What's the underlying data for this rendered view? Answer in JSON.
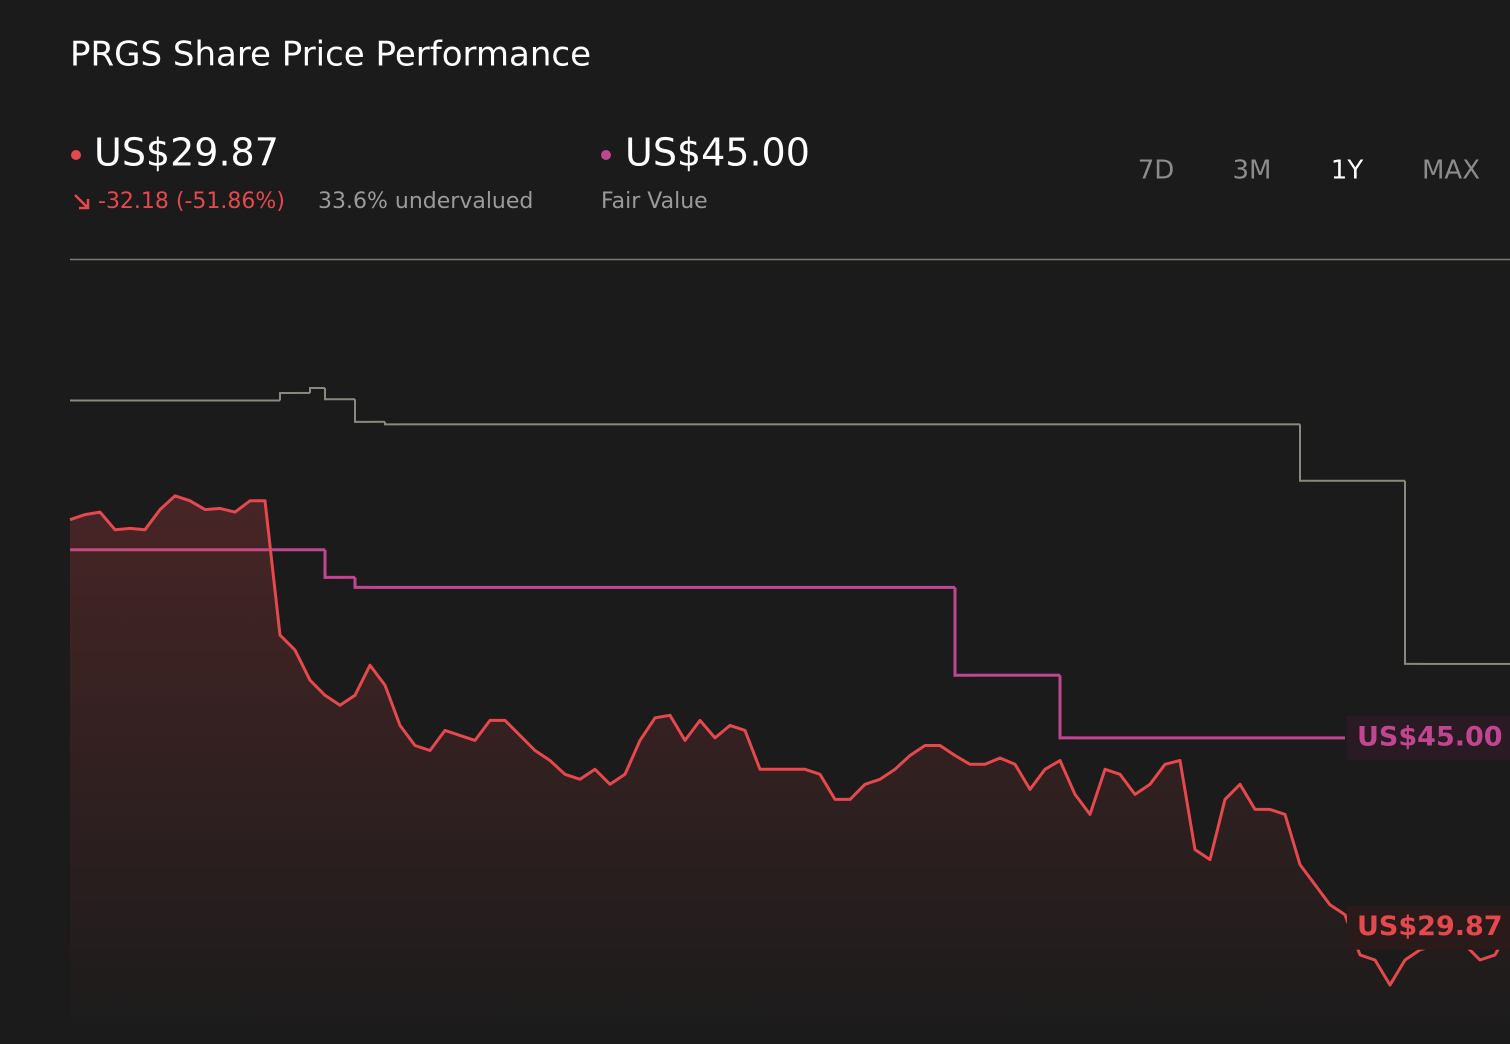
{
  "header": {
    "title": "PRGS Share Price Performance",
    "current_price": "US$29.87",
    "change": "-32.18 (-51.86%)",
    "valuation": "33.6% undervalued",
    "fair_value": "US$45.00"
  },
  "controls": {
    "ranges": [
      "7D",
      "3M",
      "1Y",
      "MAX"
    ],
    "active_range": "1Y"
  },
  "chart_data": {
    "type": "line",
    "ylim": [
      20.6,
      83.1
    ],
    "series": [
      {
        "color": "#e5484d",
        "style": "line",
        "area": true,
        "values": [
          62.4,
          62.8,
          63.0,
          61.6,
          61.7,
          61.6,
          63.2,
          64.3,
          63.9,
          63.2,
          63.3,
          63.0,
          63.9,
          63.9,
          53.2,
          52.0,
          49.6,
          48.4,
          47.6,
          48.4,
          50.8,
          49.2,
          46.0,
          44.4,
          44.0,
          45.6,
          45.2,
          44.8,
          46.4,
          46.4,
          45.2,
          44.0,
          43.2,
          42.1,
          41.7,
          42.5,
          41.3,
          42.1,
          44.8,
          46.6,
          46.8,
          44.8,
          46.4,
          45.0,
          46.0,
          45.6,
          42.5,
          42.5,
          42.5,
          42.5,
          42.1,
          40.1,
          40.1,
          41.3,
          41.7,
          42.5,
          43.6,
          44.4,
          44.4,
          43.6,
          42.9,
          42.9,
          43.4,
          42.9,
          40.9,
          42.5,
          43.2,
          40.5,
          38.9,
          42.5,
          42.1,
          40.5,
          41.3,
          42.9,
          43.2,
          36.1,
          35.3,
          40.1,
          41.3,
          39.3,
          39.3,
          38.9,
          34.9,
          33.3,
          31.7,
          30.9,
          27.7,
          27.3,
          25.3,
          27.3,
          28.1,
          28.5,
          29.7,
          28.5,
          27.3,
          27.7,
          29.87
        ]
      },
      {
        "name": "Fair Value",
        "color": "#c0478f",
        "style": "step",
        "values": [
          60.0,
          60.0,
          60.0,
          60.0,
          60.0,
          60.0,
          60.0,
          60.0,
          60.0,
          60.0,
          60.0,
          60.0,
          60.0,
          60.0,
          60.0,
          60.0,
          60.0,
          57.8,
          57.8,
          57.0,
          57.0,
          57.0,
          57.0,
          57.0,
          57.0,
          57.0,
          57.0,
          57.0,
          57.0,
          57.0,
          57.0,
          57.0,
          57.0,
          57.0,
          57.0,
          57.0,
          57.0,
          57.0,
          57.0,
          57.0,
          57.0,
          57.0,
          57.0,
          57.0,
          57.0,
          57.0,
          57.0,
          57.0,
          57.0,
          57.0,
          57.0,
          57.0,
          57.0,
          57.0,
          57.0,
          57.0,
          57.0,
          57.0,
          57.0,
          50.0,
          50.0,
          50.0,
          50.0,
          50.0,
          50.0,
          50.0,
          45.0,
          45.0,
          45.0,
          45.0,
          45.0,
          45.0,
          45.0,
          45.0,
          45.0,
          45.0,
          45.0,
          45.0,
          45.0,
          45.0,
          45.0,
          45.0,
          45.0,
          45.0,
          45.0,
          45.0,
          null,
          null,
          null,
          null,
          null,
          null,
          null,
          null,
          null,
          null,
          null
        ]
      },
      {
        "color": "#8a8a7c",
        "style": "step",
        "values": [
          71.9,
          71.9,
          71.9,
          71.9,
          71.9,
          71.9,
          71.9,
          71.9,
          71.9,
          71.9,
          71.9,
          71.9,
          71.9,
          71.9,
          72.5,
          72.5,
          72.9,
          72.0,
          72.0,
          70.2,
          70.2,
          70.0,
          70.0,
          70.0,
          70.0,
          70.0,
          70.0,
          70.0,
          70.0,
          70.0,
          70.0,
          70.0,
          70.0,
          70.0,
          70.0,
          70.0,
          70.0,
          70.0,
          70.0,
          70.0,
          70.0,
          70.0,
          70.0,
          70.0,
          70.0,
          70.0,
          70.0,
          70.0,
          70.0,
          70.0,
          70.0,
          70.0,
          70.0,
          70.0,
          70.0,
          70.0,
          70.0,
          70.0,
          70.0,
          70.0,
          70.0,
          70.0,
          70.0,
          70.0,
          70.0,
          70.0,
          70.0,
          70.0,
          70.0,
          70.0,
          70.0,
          70.0,
          70.0,
          70.0,
          70.0,
          70.0,
          70.0,
          70.0,
          70.0,
          70.0,
          70.0,
          70.0,
          65.5,
          65.5,
          65.5,
          65.5,
          65.5,
          65.5,
          65.5,
          50.9,
          50.9,
          50.9,
          50.9,
          50.9,
          50.9,
          50.9,
          50.9
        ]
      }
    ]
  }
}
